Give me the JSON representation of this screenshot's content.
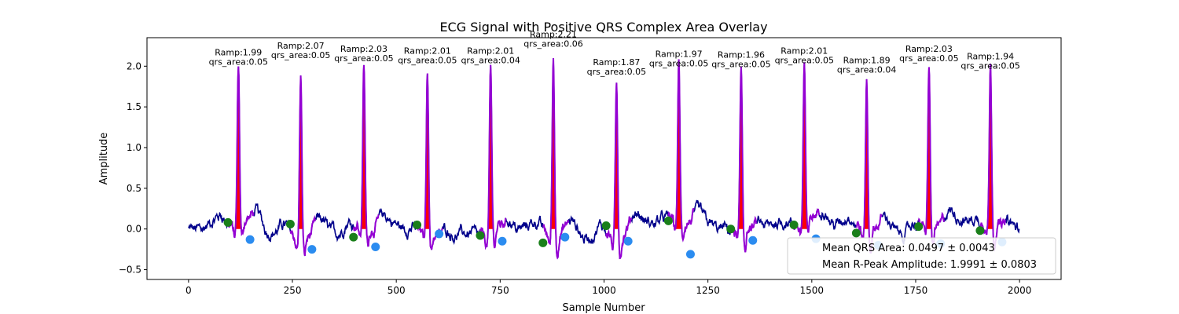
{
  "chart_data": {
    "type": "line",
    "title": "ECG Signal with Positive QRS Complex Area Overlay",
    "xlabel": "Sample Number",
    "ylabel": "Amplitude",
    "xlim": [
      -100,
      2100
    ],
    "ylim": [
      -0.62,
      2.35
    ],
    "x_ticks": [
      0,
      250,
      500,
      750,
      1000,
      1250,
      1500,
      1750,
      2000
    ],
    "y_ticks": [
      -0.5,
      0.0,
      0.5,
      1.0,
      1.5,
      2.0
    ],
    "grid": false,
    "legend_position": "bottom-right",
    "colors": {
      "signal": "#00008b",
      "qrs_segment": "#9400d3",
      "qrs_area_fill": "#ff0000",
      "q_point": "#1a7f1a",
      "s_point": "#2b8cf0"
    },
    "beats": [
      {
        "r_sample": 120,
        "r_amp": 1.99,
        "qrs_area": 0.05,
        "q_sample": 95,
        "q_amp": 0.08,
        "s_sample": 148,
        "s_amp": -0.13
      },
      {
        "r_sample": 270,
        "r_amp": 2.07,
        "qrs_area": 0.05,
        "q_sample": 245,
        "q_amp": 0.06,
        "s_sample": 297,
        "s_amp": -0.25
      },
      {
        "r_sample": 422,
        "r_amp": 2.03,
        "qrs_area": 0.05,
        "q_sample": 397,
        "q_amp": -0.1,
        "s_sample": 450,
        "s_amp": -0.22
      },
      {
        "r_sample": 575,
        "r_amp": 2.01,
        "qrs_area": 0.05,
        "q_sample": 550,
        "q_amp": 0.05,
        "s_sample": 603,
        "s_amp": -0.06
      },
      {
        "r_sample": 727,
        "r_amp": 2.01,
        "qrs_area": 0.04,
        "q_sample": 702,
        "q_amp": -0.08,
        "s_sample": 755,
        "s_amp": -0.15
      },
      {
        "r_sample": 878,
        "r_amp": 2.21,
        "qrs_area": 0.06,
        "q_sample": 853,
        "q_amp": -0.17,
        "s_sample": 906,
        "s_amp": -0.1
      },
      {
        "r_sample": 1030,
        "r_amp": 1.87,
        "qrs_area": 0.05,
        "q_sample": 1005,
        "q_amp": 0.04,
        "s_sample": 1058,
        "s_amp": -0.15
      },
      {
        "r_sample": 1180,
        "r_amp": 1.97,
        "qrs_area": 0.05,
        "q_sample": 1155,
        "q_amp": 0.1,
        "s_sample": 1208,
        "s_amp": -0.31
      },
      {
        "r_sample": 1330,
        "r_amp": 1.96,
        "qrs_area": 0.05,
        "q_sample": 1305,
        "q_amp": 0.0,
        "s_sample": 1358,
        "s_amp": -0.14
      },
      {
        "r_sample": 1482,
        "r_amp": 2.01,
        "qrs_area": 0.05,
        "q_sample": 1457,
        "q_amp": 0.05,
        "s_sample": 1510,
        "s_amp": -0.12
      },
      {
        "r_sample": 1632,
        "r_amp": 1.89,
        "qrs_area": 0.04,
        "q_sample": 1607,
        "q_amp": -0.05,
        "s_sample": 1660,
        "s_amp": -0.2
      },
      {
        "r_sample": 1782,
        "r_amp": 2.03,
        "qrs_area": 0.05,
        "q_sample": 1757,
        "q_amp": 0.03,
        "s_sample": 1810,
        "s_amp": -0.18
      },
      {
        "r_sample": 1930,
        "r_amp": 1.94,
        "qrs_area": 0.05,
        "q_sample": 1905,
        "q_amp": -0.02,
        "s_sample": 1958,
        "s_amp": -0.16
      }
    ],
    "legend": [
      "Mean QRS Area: 0.0497 ± 0.0043",
      "Mean R-Peak Amplitude: 1.9991 ± 0.0803"
    ]
  }
}
